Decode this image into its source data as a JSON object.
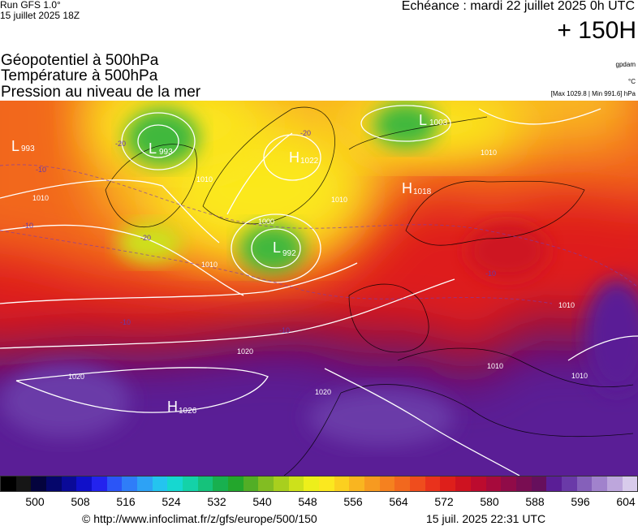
{
  "header": {
    "run": "Run GFS 1.0°",
    "run_date": "15 juillet 2025 18Z",
    "echeance": "Echéance : mardi 22 juillet 2025 0h UTC",
    "lead_time": "+ 150H"
  },
  "titles": [
    "Géopotentiel à 500hPa",
    "Température à 500hPa",
    "Pression au niveau de la mer"
  ],
  "units": {
    "geopotential": "gpdam",
    "temperature": "°C",
    "pressure_extremes": "[Max 1029.8 | Min 991.6] hPa"
  },
  "map": {
    "centers": [
      {
        "type": "L",
        "value": "993",
        "lon": -60,
        "lat": 63
      },
      {
        "type": "L",
        "value": "993",
        "lon": -40,
        "lat": 73
      },
      {
        "type": "L",
        "value": "1003",
        "lon": 10,
        "lat": 80
      },
      {
        "type": "H",
        "value": "1022",
        "lon": -30,
        "lat": 70
      },
      {
        "type": "H",
        "value": "1018",
        "lon": 10,
        "lat": 66
      },
      {
        "type": "L",
        "value": "992",
        "lon": -22,
        "lat": 61
      },
      {
        "type": "H",
        "value": "1026",
        "lon": -40,
        "lat": 36
      }
    ],
    "isobar_labels": [
      "1010",
      "1010",
      "1010",
      "1010",
      "1000",
      "1010",
      "1020",
      "1020",
      "1020",
      "1010",
      "1010",
      "1010"
    ],
    "temperature_labels": [
      "-20",
      "-20",
      "-20",
      "-10",
      "-10",
      "-10",
      "-10",
      "-10"
    ],
    "colors": {
      "ridge_purple": "#5a1e96",
      "warm_red": "#e4261c",
      "orange": "#f7901e",
      "yellow": "#fbe81f",
      "green": "#3fb83c",
      "isoline": "#ffffff"
    }
  },
  "colorbar": {
    "colors": [
      "#000000",
      "#161616",
      "#04033d",
      "#05066b",
      "#0a0a98",
      "#1010c9",
      "#2323ee",
      "#2b55f7",
      "#2f7df8",
      "#2da2f5",
      "#24c4ef",
      "#16d8d0",
      "#14d2a8",
      "#15c27b",
      "#18b04f",
      "#23a62c",
      "#52ae26",
      "#82bd22",
      "#a8cf1e",
      "#cde11b",
      "#edef1b",
      "#fbe81f",
      "#fbd01f",
      "#f9b520",
      "#f79a20",
      "#f5811f",
      "#f2681e",
      "#ef4d1d",
      "#e9321c",
      "#de1f1b",
      "#ce1220",
      "#bc0b2e",
      "#a70a3c",
      "#900b48",
      "#790d52",
      "#660f5c",
      "#5a1e96",
      "#6a3aa8",
      "#8560ba",
      "#a182cc",
      "#bda6dc",
      "#d8cbeb"
    ],
    "ticks": [
      "500",
      "508",
      "516",
      "524",
      "532",
      "540",
      "548",
      "556",
      "564",
      "572",
      "580",
      "588",
      "596",
      "604"
    ]
  },
  "footer": {
    "url": "© http://www.infoclimat.fr/z/gfs/europe/500/150",
    "timestamp": "15 juil. 2025 22:31 UTC"
  }
}
